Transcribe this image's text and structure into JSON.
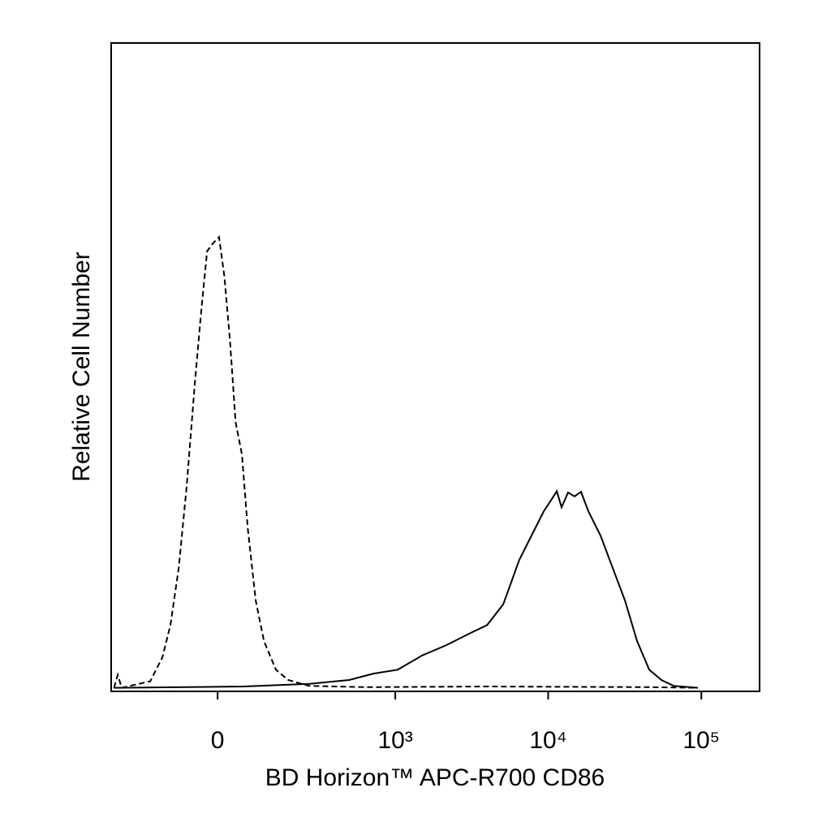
{
  "chart_data": {
    "type": "line",
    "xlabel": "BD Horizon™ APC-R700 CD86",
    "ylabel": "Relative Cell Number",
    "xscale": "biexponential",
    "xscale_linear_width": 139,
    "xlim": [
      -330,
      240000
    ],
    "xticks": [
      0,
      {
        "value": 1000,
        "label": "10³"
      },
      {
        "value": 10000,
        "label": "10⁴"
      },
      {
        "value": 100000,
        "label": "10⁵"
      }
    ],
    "ylim": [
      0,
      100
    ],
    "series": [
      {
        "color": "#000000",
        "dash": true,
        "x": [
          -315,
          -296,
          -277,
          -166,
          -129,
          -107,
          -86,
          -67,
          -48,
          -34,
          -22,
          -10,
          3,
          14,
          26,
          38,
          52,
          65,
          84,
          105,
          138,
          177,
          256,
          632,
          3990,
          45700,
          95000
        ],
        "values": [
          0.3,
          2.3,
          0.3,
          1.3,
          5,
          10,
          18.8,
          31.4,
          47.7,
          59,
          67.8,
          69,
          70,
          64,
          54,
          41.4,
          36.4,
          25.1,
          13.8,
          7.5,
          3.1,
          1.5,
          0.6,
          0.4,
          0.5,
          0.4,
          0.3
        ]
      },
      {
        "color": "#000000",
        "dash": false,
        "x": [
          -315,
          55,
          256,
          492,
          716,
          1037,
          1499,
          2164,
          3127,
          3990,
          5090,
          6490,
          8280,
          9360,
          10570,
          11380,
          12240,
          13490,
          14870,
          16400,
          18300,
          22000,
          26400,
          31700,
          38100,
          45700,
          54900,
          65900,
          95000
        ],
        "values": [
          0.3,
          0.5,
          0.9,
          1.5,
          2.5,
          3.1,
          5.3,
          6.9,
          8.8,
          10,
          13.2,
          20.1,
          25.1,
          27.6,
          29.5,
          30.7,
          28.2,
          30.5,
          29.9,
          30.6,
          27.6,
          23.8,
          18.8,
          13.8,
          7.5,
          3.1,
          1.5,
          0.6,
          0.3
        ]
      }
    ]
  }
}
